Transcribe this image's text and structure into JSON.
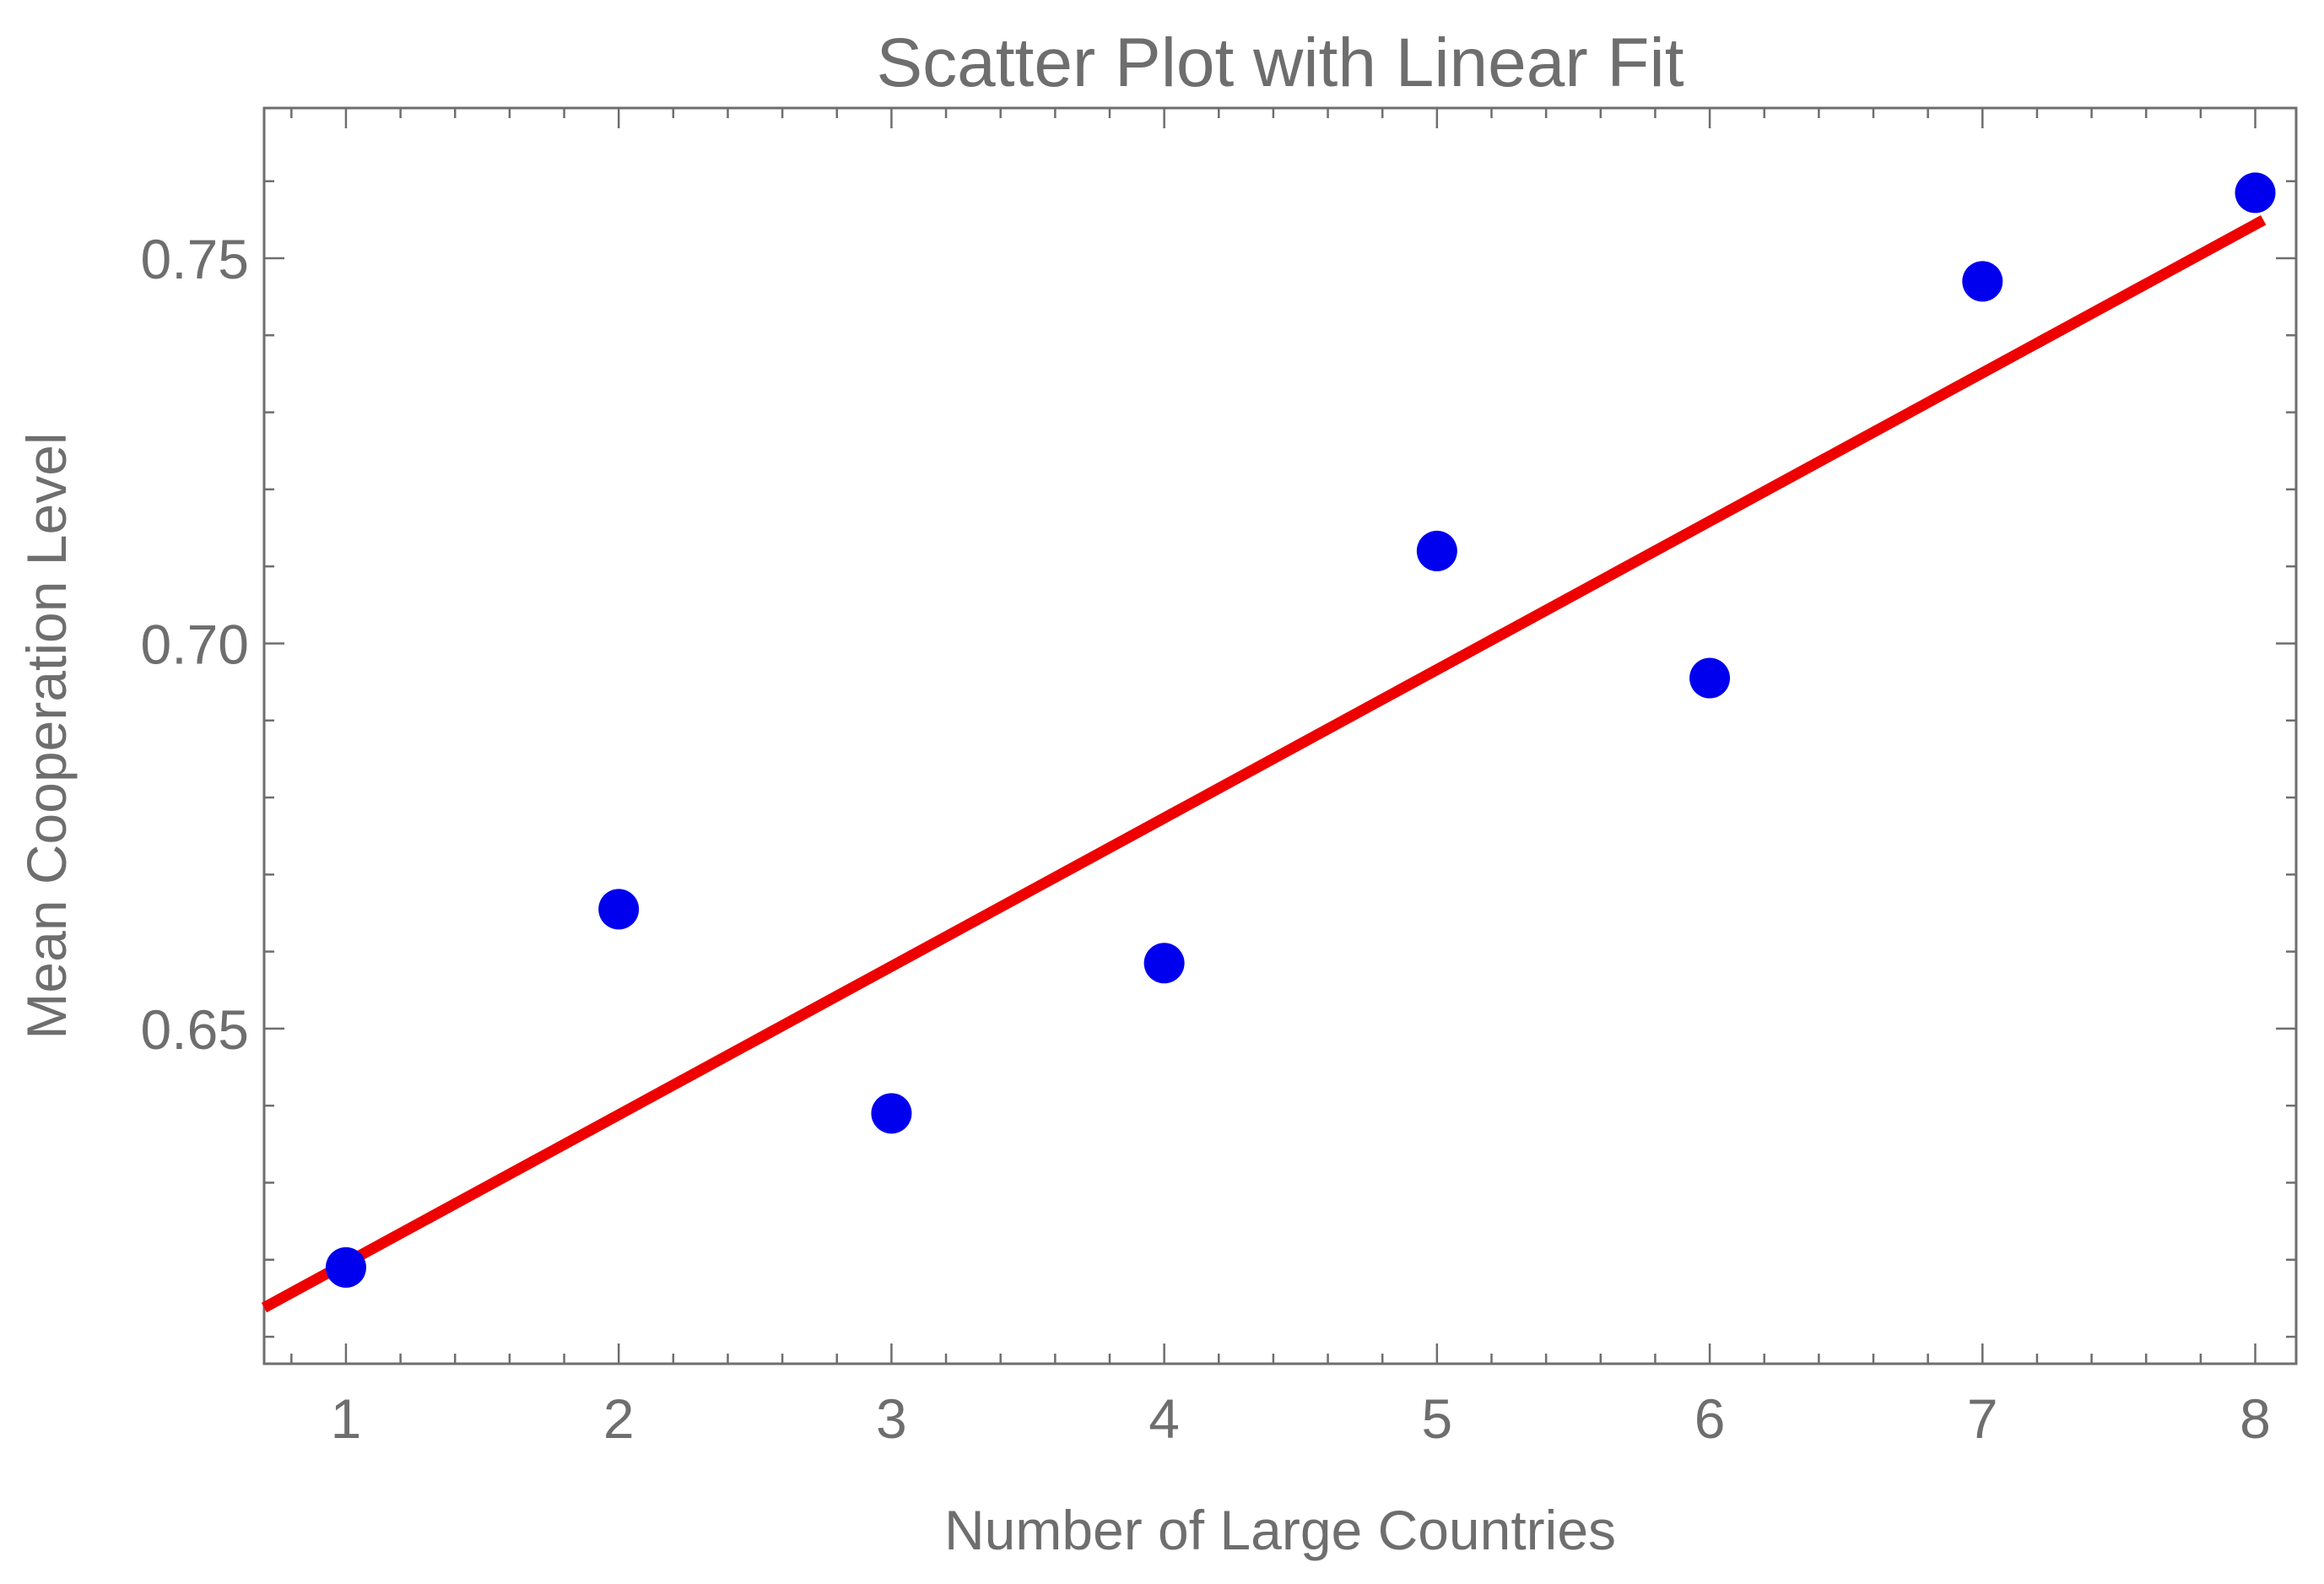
{
  "chart_data": {
    "type": "scatter",
    "title": "Scatter Plot with Linear Fit",
    "xlabel": "Number of Large Countries",
    "ylabel": "Mean Cooperation Level",
    "xlim": [
      0.7,
      8.15
    ],
    "ylim": [
      0.6065,
      0.7695
    ],
    "x_ticks": [
      1,
      2,
      3,
      4,
      5,
      6,
      7,
      8
    ],
    "x_tick_labels": [
      "1",
      "2",
      "3",
      "4",
      "5",
      "6",
      "7",
      "8"
    ],
    "y_ticks": [
      0.65,
      0.7,
      0.75
    ],
    "y_tick_labels": [
      "0.65",
      "0.70",
      "0.75"
    ],
    "grid": false,
    "series": [
      {
        "type": "scatter",
        "color": "#0000ee",
        "points": [
          {
            "x": 1,
            "y": 0.619
          },
          {
            "x": 2,
            "y": 0.6655
          },
          {
            "x": 3,
            "y": 0.639
          },
          {
            "x": 4,
            "y": 0.6585
          },
          {
            "x": 5,
            "y": 0.712
          },
          {
            "x": 6,
            "y": 0.6955
          },
          {
            "x": 7,
            "y": 0.747
          },
          {
            "x": 8,
            "y": 0.7585
          }
        ]
      },
      {
        "type": "line",
        "color": "#ee0000",
        "fit": {
          "slope": 0.01926,
          "intercept": 0.6003
        },
        "x_range": [
          0.7,
          8.03
        ]
      }
    ]
  }
}
